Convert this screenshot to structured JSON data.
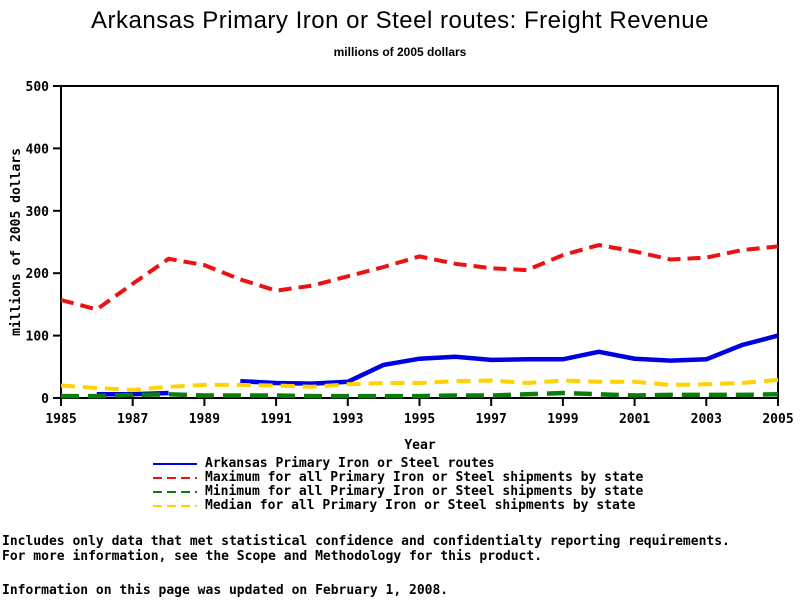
{
  "chart_data": {
    "type": "line",
    "title": "Arkansas Primary Iron or Steel routes: Freight Revenue",
    "subtitle": "millions of 2005 dollars",
    "xlabel": "Year",
    "ylabel": "millions of 2005 dollars",
    "ylim": [
      0,
      500
    ],
    "y_ticks": [
      0,
      100,
      200,
      300,
      400,
      500
    ],
    "x_ticks": [
      1985,
      1987,
      1989,
      1991,
      1993,
      1995,
      1997,
      1999,
      2001,
      2003,
      2005
    ],
    "grid": false,
    "legend_position": "bottom",
    "x": [
      1985,
      1986,
      1987,
      1988,
      1989,
      1990,
      1991,
      1992,
      1993,
      1994,
      1995,
      1996,
      1997,
      1998,
      1999,
      2000,
      2001,
      2002,
      2003,
      2004,
      2005
    ],
    "series": [
      {
        "id": "arkansas",
        "name": "Arkansas Primary Iron or Steel routes",
        "color": "#0000e0",
        "style": "solid",
        "dash": "none",
        "width": 4.5,
        "values": [
          null,
          6,
          6,
          8,
          null,
          27,
          24,
          23,
          26,
          53,
          63,
          66,
          61,
          62,
          62,
          74,
          63,
          60,
          62,
          85,
          100
        ]
      },
      {
        "id": "maximum",
        "name": "Maximum for all Primary Iron or Steel shipments by state",
        "color": "#ea1212",
        "style": "dashed",
        "dash": "13 7",
        "width": 4,
        "values": [
          157,
          142,
          183,
          223,
          213,
          190,
          172,
          180,
          195,
          210,
          227,
          215,
          208,
          205,
          229,
          245,
          235,
          222,
          225,
          237,
          243
        ]
      },
      {
        "id": "minimum",
        "name": "Minimum for all Primary Iron or Steel shipments by state",
        "color": "#0b7d0b",
        "style": "dashed",
        "dash": "18 9",
        "width": 4.5,
        "values": [
          3,
          3,
          5,
          6,
          4,
          4,
          4,
          3,
          3,
          3,
          3,
          4,
          4,
          6,
          8,
          6,
          4,
          5,
          5,
          5,
          6
        ]
      },
      {
        "id": "median",
        "name": "Median for all Primary Iron or Steel shipments by state",
        "color": "#ffd200",
        "style": "dashed",
        "dash": "14 8",
        "width": 4,
        "values": [
          20,
          16,
          13,
          18,
          21,
          21,
          20,
          18,
          22,
          24,
          24,
          27,
          28,
          24,
          28,
          26,
          26,
          21,
          22,
          24,
          29
        ]
      }
    ]
  },
  "footnotes": {
    "line1": "Includes only data that met statistical confidence and confidentialty reporting requirements.",
    "line2": "For more information, see the Scope and Methodology for this product.",
    "updated": "Information on this page was updated on February 1, 2008."
  }
}
